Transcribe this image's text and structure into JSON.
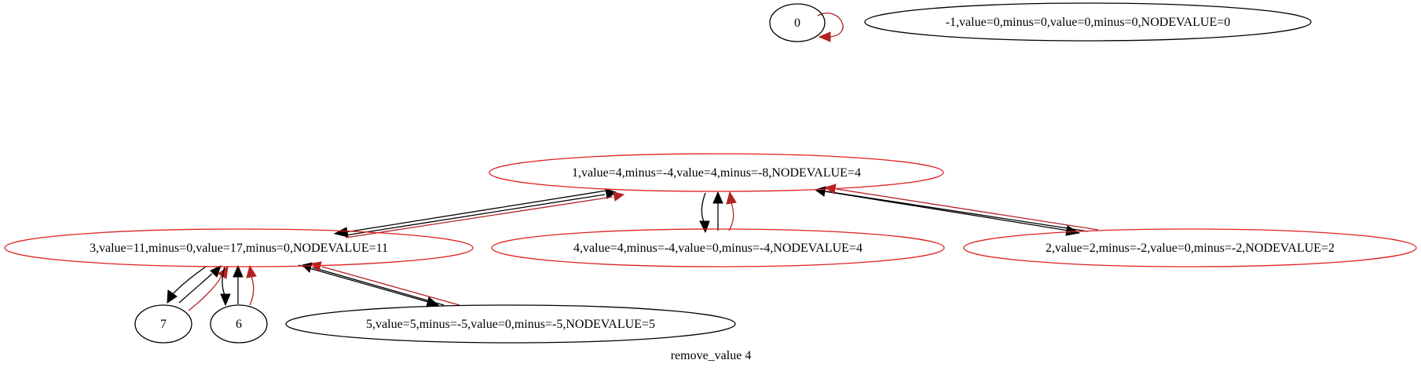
{
  "graph": {
    "caption": "remove_value 4",
    "colors": {
      "black": "#000000",
      "red_node": "#e02020",
      "red_edge": "#b22222"
    },
    "nodes": {
      "n0": {
        "label": "0",
        "color": "black"
      },
      "nm1": {
        "label": "-1,value=0,minus=0,value=0,minus=0,NODEVALUE=0",
        "color": "black"
      },
      "n1": {
        "label": "1,value=4,minus=-4,value=4,minus=-8,NODEVALUE=4",
        "color": "red"
      },
      "n3": {
        "label": "3,value=11,minus=0,value=17,minus=0,NODEVALUE=11",
        "color": "red"
      },
      "n4": {
        "label": "4,value=4,minus=-4,value=0,minus=-4,NODEVALUE=4",
        "color": "red"
      },
      "n2": {
        "label": "2,value=2,minus=-2,value=0,minus=-2,NODEVALUE=2",
        "color": "red"
      },
      "n7": {
        "label": "7",
        "color": "black"
      },
      "n6": {
        "label": "6",
        "color": "black"
      },
      "n5": {
        "label": "5,value=5,minus=-5,value=0,minus=-5,NODEVALUE=5",
        "color": "black"
      }
    },
    "edges": [
      {
        "from": "0",
        "to": "0",
        "color": "red"
      },
      {
        "from": "1",
        "to": "3",
        "color": "black"
      },
      {
        "from": "3",
        "to": "1",
        "color": "black"
      },
      {
        "from": "3",
        "to": "1",
        "color": "red"
      },
      {
        "from": "1",
        "to": "4",
        "color": "black"
      },
      {
        "from": "4",
        "to": "1",
        "color": "black"
      },
      {
        "from": "4",
        "to": "1",
        "color": "red"
      },
      {
        "from": "1",
        "to": "2",
        "color": "black"
      },
      {
        "from": "2",
        "to": "1",
        "color": "black"
      },
      {
        "from": "2",
        "to": "1",
        "color": "red"
      },
      {
        "from": "3",
        "to": "7",
        "color": "black"
      },
      {
        "from": "7",
        "to": "3",
        "color": "black"
      },
      {
        "from": "7",
        "to": "3",
        "color": "red"
      },
      {
        "from": "3",
        "to": "6",
        "color": "black"
      },
      {
        "from": "6",
        "to": "3",
        "color": "black"
      },
      {
        "from": "6",
        "to": "3",
        "color": "red"
      },
      {
        "from": "3",
        "to": "5",
        "color": "black"
      },
      {
        "from": "5",
        "to": "3",
        "color": "black"
      },
      {
        "from": "5",
        "to": "3",
        "color": "red"
      }
    ]
  }
}
